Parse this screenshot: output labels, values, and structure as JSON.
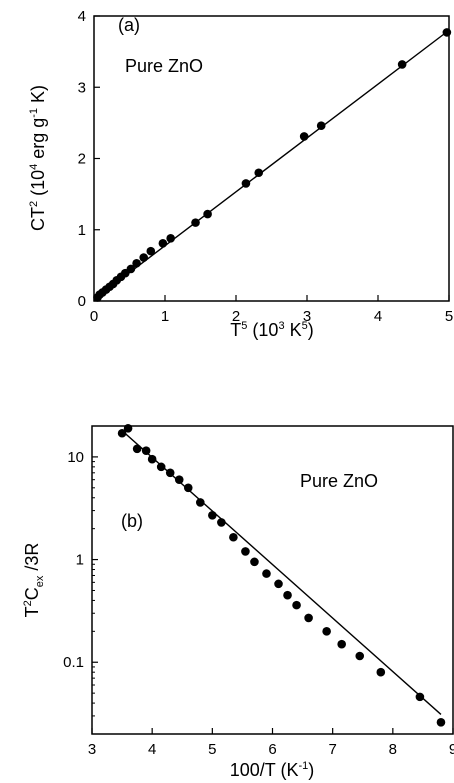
{
  "chart_data": [
    {
      "type": "scatter",
      "panel_label": "(a)",
      "annotation": "Pure ZnO",
      "xlabel": {
        "base": "T",
        "sup": "5",
        "rest": " (10",
        "sup2": "3",
        "rest2": " K",
        "sup3": "5",
        "end": ")"
      },
      "ylabel": {
        "base": "CT",
        "sup": "2",
        "rest": " (10",
        "sup2": "4",
        "rest2": " erg g",
        "sup3": "-1",
        "end": " K)"
      },
      "xlim": [
        0,
        5
      ],
      "ylim": [
        0,
        4
      ],
      "xticks": [
        "0",
        "1",
        "2",
        "3",
        "4",
        "5"
      ],
      "yticks": [
        "0",
        "1",
        "2",
        "3",
        "4"
      ],
      "x": [
        0.05,
        0.08,
        0.12,
        0.17,
        0.22,
        0.27,
        0.32,
        0.38,
        0.44,
        0.52,
        0.6,
        0.7,
        0.8,
        0.97,
        1.08,
        1.43,
        1.6,
        2.14,
        2.32,
        2.96,
        3.2,
        4.34,
        4.97
      ],
      "y": [
        0.05,
        0.09,
        0.12,
        0.16,
        0.2,
        0.24,
        0.29,
        0.34,
        0.39,
        0.45,
        0.53,
        0.61,
        0.7,
        0.81,
        0.88,
        1.1,
        1.22,
        1.65,
        1.8,
        2.31,
        2.46,
        3.32,
        3.77
      ],
      "fit_line": {
        "x": [
          0,
          5
        ],
        "y": [
          0.02,
          3.8
        ]
      },
      "grid": false
    },
    {
      "type": "scatter",
      "panel_label": "(b)",
      "annotation": "Pure ZnO",
      "xlabel": {
        "base": "100/T (K",
        "sup": "-1",
        "end": ")"
      },
      "ylabel": {
        "base": "T",
        "sup": "2",
        "mid": "C",
        "sub": "ex",
        "end": " /3R"
      },
      "xlim": [
        3,
        9
      ],
      "ylim": [
        0.02,
        20
      ],
      "yscale": "log",
      "xticks": [
        "3",
        "4",
        "5",
        "6",
        "7",
        "8",
        "9"
      ],
      "yticks": [
        "0.1",
        "1",
        "10"
      ],
      "x": [
        3.5,
        3.6,
        3.75,
        3.9,
        4.0,
        4.15,
        4.3,
        4.45,
        4.6,
        4.8,
        5.0,
        5.15,
        5.35,
        5.55,
        5.7,
        5.9,
        6.1,
        6.25,
        6.4,
        6.6,
        6.9,
        7.15,
        7.45,
        7.8,
        8.45,
        8.8
      ],
      "y": [
        17,
        19,
        12,
        11.5,
        9.5,
        8,
        7,
        6,
        5,
        3.6,
        2.7,
        2.3,
        1.65,
        1.2,
        0.95,
        0.73,
        0.58,
        0.45,
        0.36,
        0.27,
        0.2,
        0.15,
        0.115,
        0.08,
        0.046,
        0.026
      ],
      "fit_line": {
        "x": [
          3.5,
          8.8
        ],
        "y": [
          18,
          0.031
        ]
      },
      "grid": false
    }
  ]
}
